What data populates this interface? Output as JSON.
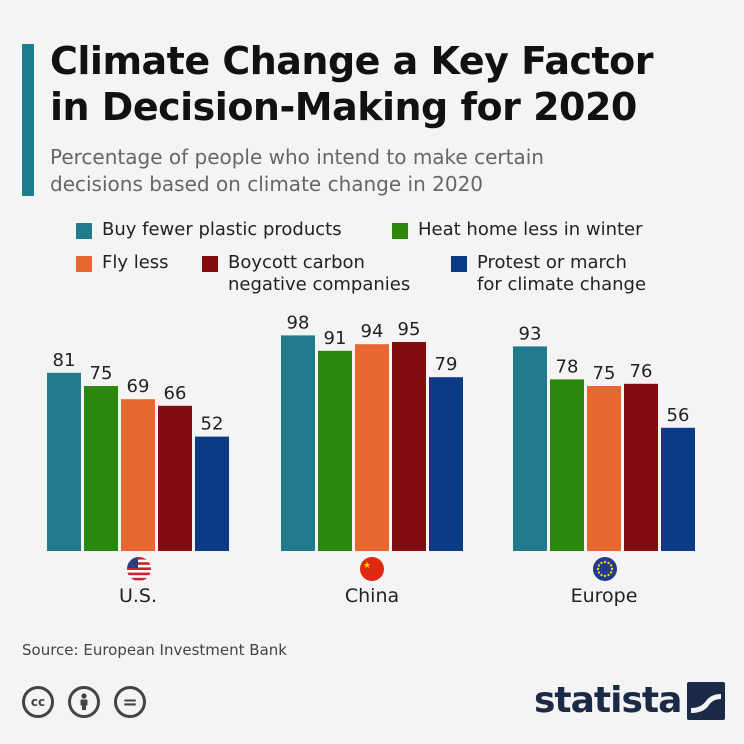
{
  "header": {
    "title_line1": "Climate Change a Key Factor",
    "title_line2": "in Decision-Making for 2020",
    "subtitle_line1": "Percentage of people who intend to make certain",
    "subtitle_line2": "decisions based on climate change in 2020"
  },
  "legend": [
    {
      "label_line1": "Buy fewer plastic products",
      "label_line2": "",
      "color": "#217b8d"
    },
    {
      "label_line1": "Heat home less in winter",
      "label_line2": "",
      "color": "#2c880c"
    },
    {
      "label_line1": "Fly less",
      "label_line2": "",
      "color": "#e6672f"
    },
    {
      "label_line1": "Boycott carbon",
      "label_line2": "negative companies",
      "color": "#820c0e"
    },
    {
      "label_line1": "Protest or march",
      "label_line2": "for climate change",
      "color": "#0b3b84"
    }
  ],
  "chart_data": {
    "type": "bar",
    "categories": [
      "U.S.",
      "China",
      "Europe"
    ],
    "series": [
      {
        "name": "Buy fewer plastic products",
        "values": [
          81,
          98,
          93
        ]
      },
      {
        "name": "Heat home less in winter",
        "values": [
          75,
          91,
          78
        ]
      },
      {
        "name": "Fly less",
        "values": [
          69,
          94,
          75
        ]
      },
      {
        "name": "Boycott carbon negative companies",
        "values": [
          66,
          95,
          76
        ]
      },
      {
        "name": "Protest or march for climate change",
        "values": [
          52,
          79,
          56
        ]
      }
    ],
    "colors": [
      "#217b8d",
      "#2c880c",
      "#e6672f",
      "#820c0e",
      "#0b3b84"
    ],
    "ylim": [
      0,
      100
    ],
    "grid": false,
    "value_labels": true,
    "legend_position": "top",
    "title": "Climate Change a Key Factor in Decision-Making for 2020",
    "xlabel": "",
    "ylabel": ""
  },
  "flags": [
    "us-flag",
    "china-flag",
    "eu-flag"
  ],
  "footer": {
    "source": "Source: European Investment Bank",
    "logo": "statista",
    "license_icons": [
      "cc-icon",
      "person-icon",
      "equals-icon"
    ],
    "cc_label": "cc",
    "eq_label": "="
  }
}
